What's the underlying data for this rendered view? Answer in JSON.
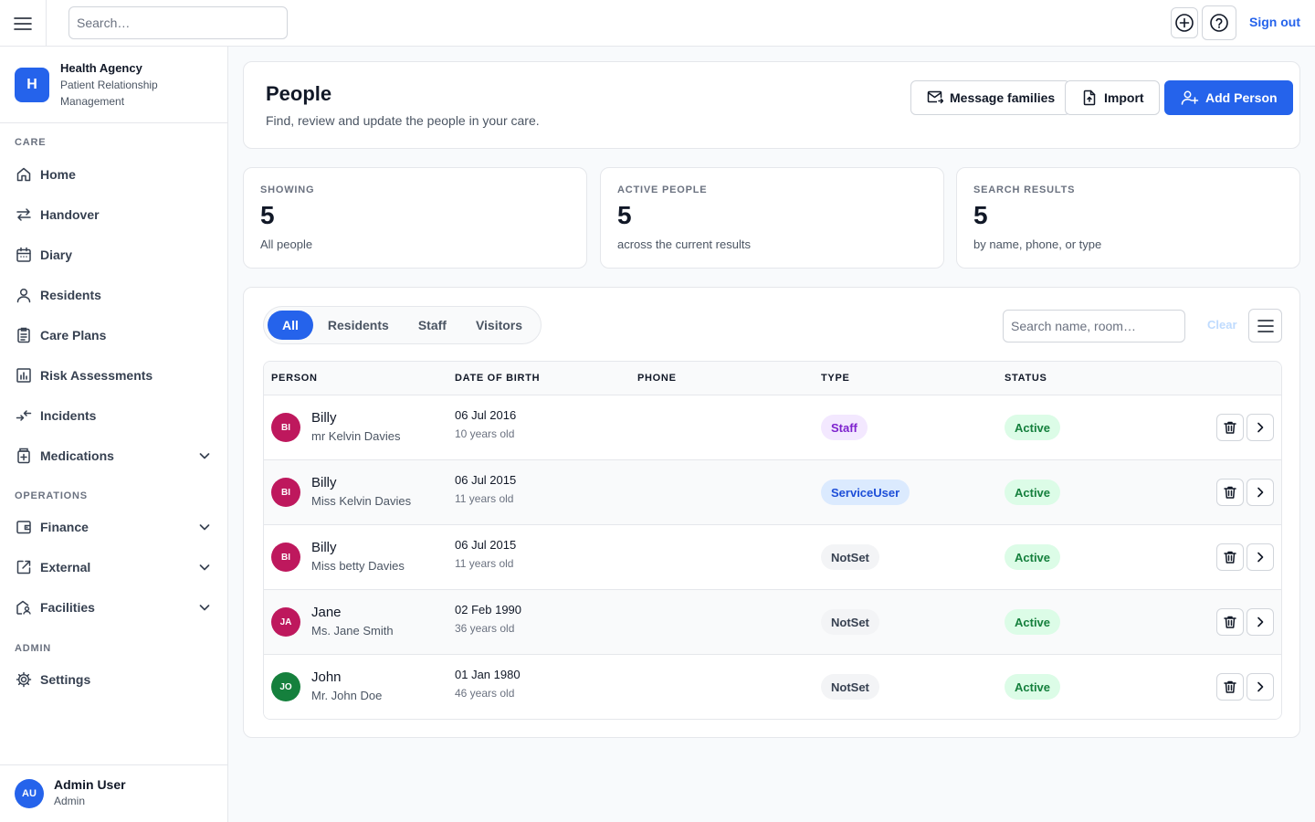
{
  "topbar": {
    "search_placeholder": "Search…",
    "signout_label": "Sign out"
  },
  "brand": {
    "logo_letter": "H",
    "name": "Health Agency",
    "subtitle": "Patient Relationship Management"
  },
  "sidebar": {
    "sections": {
      "care": "CARE",
      "operations": "OPERATIONS",
      "admin": "ADMIN"
    },
    "items": [
      {
        "label": "Home",
        "icon": "home-icon"
      },
      {
        "label": "Handover",
        "icon": "arrows-exchange-icon"
      },
      {
        "label": "Diary",
        "icon": "calendar-icon"
      },
      {
        "label": "Residents",
        "icon": "user-icon"
      },
      {
        "label": "Care Plans",
        "icon": "clipboard-icon"
      },
      {
        "label": "Risk Assessments",
        "icon": "bar-chart-icon"
      },
      {
        "label": "Incidents",
        "icon": "arrows-inward-icon"
      },
      {
        "label": "Medications",
        "icon": "medicine-box-icon",
        "expandable": true
      },
      {
        "label": "Finance",
        "icon": "wallet-icon",
        "expandable": true
      },
      {
        "label": "External",
        "icon": "external-link-icon",
        "expandable": true
      },
      {
        "label": "Facilities",
        "icon": "building-user-icon",
        "expandable": true
      },
      {
        "label": "Settings",
        "icon": "gear-icon"
      }
    ],
    "user": {
      "initials": "AU",
      "name": "Admin User",
      "role": "Admin"
    }
  },
  "header": {
    "title": "People",
    "subtitle": "Find, review and update the people in your care.",
    "buttons": {
      "message": "Message families",
      "import": "Import",
      "add": "Add Person"
    }
  },
  "stats": [
    {
      "label": "SHOWING",
      "value": "5",
      "desc": "All people"
    },
    {
      "label": "ACTIVE PEOPLE",
      "value": "5",
      "desc": "across the current results"
    },
    {
      "label": "SEARCH RESULTS",
      "value": "5",
      "desc": "by name, phone, or type"
    }
  ],
  "filters": {
    "tabs": [
      "All",
      "Residents",
      "Staff",
      "Visitors"
    ],
    "active_tab": "All",
    "search_placeholder": "Search name, room…",
    "clear_label": "Clear"
  },
  "table": {
    "columns": [
      "PERSON",
      "DATE OF BIRTH",
      "PHONE",
      "TYPE",
      "STATUS"
    ],
    "rows": [
      {
        "initials": "BI",
        "avatar_color": "#be185d",
        "name": "Billy",
        "full_name": "mr Kelvin Davies",
        "dob": "06 Jul 2016",
        "age": "10 years old",
        "phone": "",
        "type": "Staff",
        "type_bg": "#f3e8ff",
        "type_fg": "#7e22ce",
        "status": "Active"
      },
      {
        "initials": "BI",
        "avatar_color": "#be185d",
        "name": "Billy",
        "full_name": "Miss Kelvin Davies",
        "dob": "06 Jul 2015",
        "age": "11 years old",
        "phone": "",
        "type": "ServiceUser",
        "type_bg": "#dbeafe",
        "type_fg": "#1d4ed8",
        "status": "Active"
      },
      {
        "initials": "BI",
        "avatar_color": "#be185d",
        "name": "Billy",
        "full_name": "Miss betty Davies",
        "dob": "06 Jul 2015",
        "age": "11 years old",
        "phone": "",
        "type": "NotSet",
        "type_bg": "#f3f4f6",
        "type_fg": "#374151",
        "status": "Active"
      },
      {
        "initials": "JA",
        "avatar_color": "#be185d",
        "name": "Jane",
        "full_name": "Ms. Jane Smith",
        "dob": "02 Feb 1990",
        "age": "36 years old",
        "phone": "",
        "type": "NotSet",
        "type_bg": "#f3f4f6",
        "type_fg": "#374151",
        "status": "Active"
      },
      {
        "initials": "JO",
        "avatar_color": "#15803d",
        "name": "John",
        "full_name": "Mr. John Doe",
        "dob": "01 Jan 1980",
        "age": "46 years old",
        "phone": "",
        "type": "NotSet",
        "type_bg": "#f3f4f6",
        "type_fg": "#374151",
        "status": "Active"
      }
    ]
  },
  "colors": {
    "accent": "#2563eb",
    "active_status_bg": "#dcfce7",
    "active_status_fg": "#15803d"
  }
}
